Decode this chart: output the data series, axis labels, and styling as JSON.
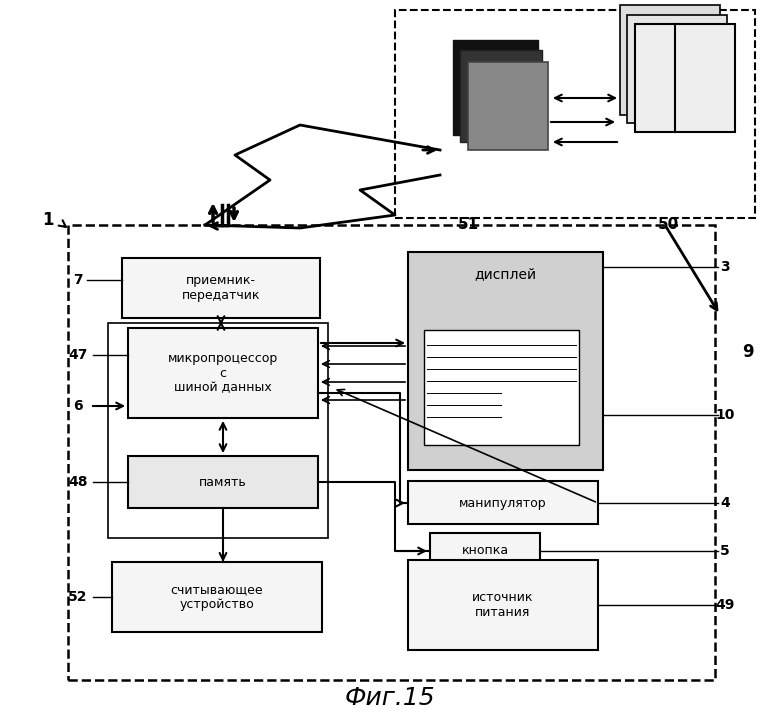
{
  "title": "Фиг.15",
  "bg_color": "#ffffff",
  "labels": {
    "transceiver": "приемник-\nпередатчик",
    "cpu": "микропроцессор\nс\nшиной данных",
    "memory": "память",
    "reader": "считывающее\nустройство",
    "display": "дисплей",
    "manipulator": "манипулятор",
    "button": "кнопка",
    "power": "источник\nпитания"
  }
}
